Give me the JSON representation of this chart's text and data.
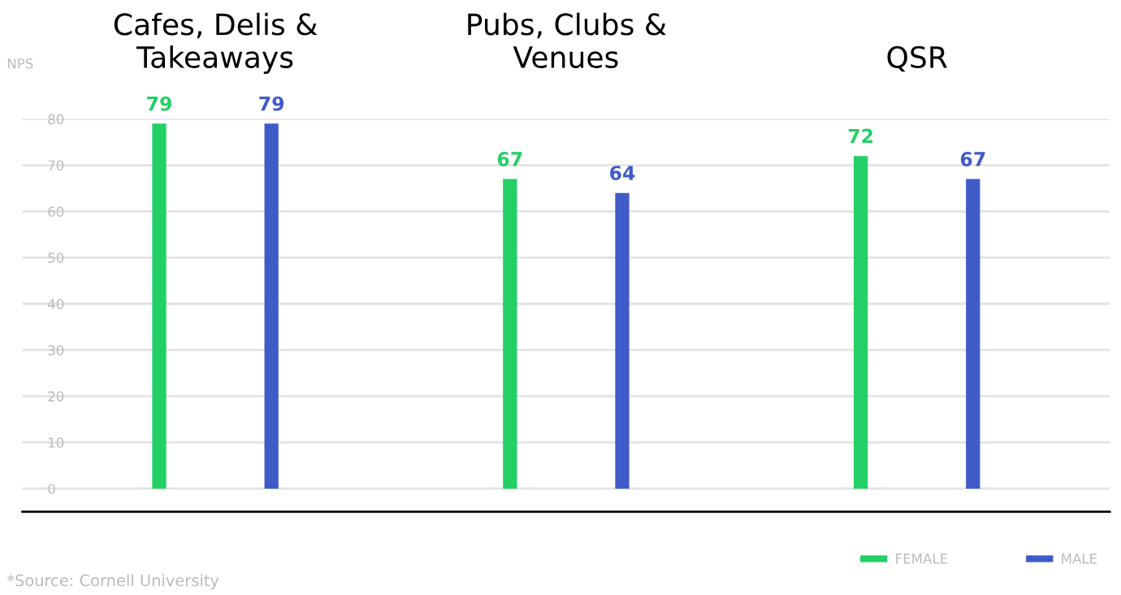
{
  "chart_data": {
    "type": "bar",
    "ylabel": "NPS",
    "categories": [
      "Cafes, Delis &\nTakeaways",
      "Pubs, Clubs &\nVenues",
      "QSR"
    ],
    "series": [
      {
        "name": "FEMALE",
        "color": "#22d066",
        "values": [
          79,
          67,
          72
        ]
      },
      {
        "name": "MALE",
        "color": "#3f5bc8",
        "values": [
          79,
          64,
          67
        ]
      }
    ],
    "ylim": [
      -5,
      80
    ],
    "yticks": [
      0,
      10,
      20,
      30,
      40,
      50,
      60,
      70,
      80
    ],
    "grid": "y",
    "legend": "bottom right",
    "data_labels": true,
    "annotations": [
      "*Source: Cornell University"
    ]
  }
}
